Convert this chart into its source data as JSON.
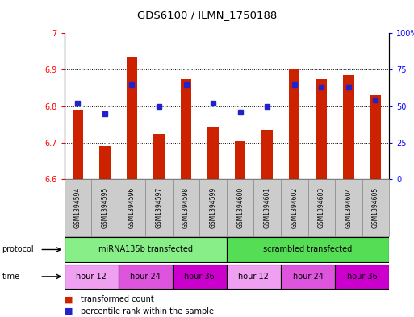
{
  "title": "GDS6100 / ILMN_1750188",
  "samples": [
    "GSM1394594",
    "GSM1394595",
    "GSM1394596",
    "GSM1394597",
    "GSM1394598",
    "GSM1394599",
    "GSM1394600",
    "GSM1394601",
    "GSM1394602",
    "GSM1394603",
    "GSM1394604",
    "GSM1394605"
  ],
  "bar_values": [
    6.79,
    6.69,
    6.935,
    6.725,
    6.875,
    6.745,
    6.705,
    6.735,
    6.9,
    6.875,
    6.885,
    6.83
  ],
  "percentile_values": [
    52,
    45,
    65,
    50,
    65,
    52,
    46,
    50,
    65,
    63,
    63,
    54
  ],
  "bar_base": 6.6,
  "ylim_left": [
    6.6,
    7.0
  ],
  "ylim_right": [
    0,
    100
  ],
  "yticks_left": [
    6.6,
    6.7,
    6.8,
    6.9,
    7.0
  ],
  "ytick_labels_left": [
    "6.6",
    "6.7",
    "6.8",
    "6.9",
    "7"
  ],
  "yticks_right": [
    0,
    25,
    50,
    75,
    100
  ],
  "ytick_labels_right": [
    "0",
    "25",
    "50",
    "75",
    "100%"
  ],
  "bar_color": "#cc2200",
  "percentile_color": "#2222cc",
  "protocol_colors": [
    "#88ee88",
    "#55dd55"
  ],
  "protocol_labels": [
    "miRNA135b transfected",
    "scrambled transfected"
  ],
  "time_colors": [
    "#f0a0f0",
    "#dd55dd",
    "#cc00cc",
    "#f0a0f0",
    "#dd55dd",
    "#cc00cc"
  ],
  "time_labels": [
    "hour 12",
    "hour 24",
    "hour 36",
    "hour 12",
    "hour 24",
    "hour 36"
  ],
  "protocol_label": "protocol",
  "time_label": "time",
  "legend_bar_label": "transformed count",
  "legend_pct_label": "percentile rank within the sample",
  "bg_color": "#ffffff",
  "sample_bg": "#cccccc"
}
